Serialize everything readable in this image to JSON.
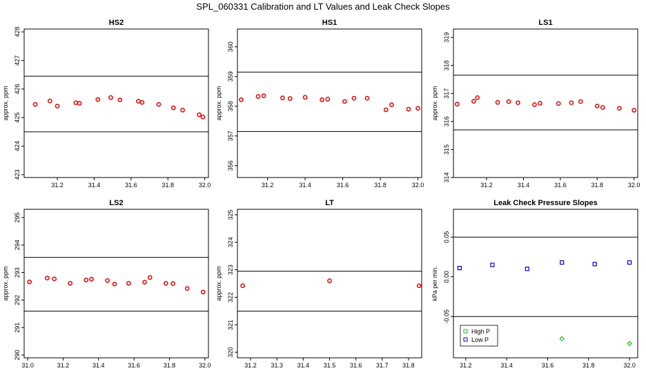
{
  "figure": {
    "title": "SPL_060331  Calibration and LT Values and Leak Check Slopes"
  },
  "chart_data": [
    {
      "type": "scatter",
      "title": "HS2",
      "ylabel": "approx. ppm",
      "xlim": [
        31.02,
        32.02
      ],
      "ylim": [
        422.9,
        428.1
      ],
      "xticks": [
        "31.2",
        "31.4",
        "31.6",
        "31.8",
        "32.0"
      ],
      "yticks": [
        "423",
        "424",
        "425",
        "426",
        "427",
        "428"
      ],
      "hlines": [
        426.45,
        424.5
      ],
      "series": [
        {
          "color": "#dd0000",
          "marker": "circle",
          "x": [
            31.08,
            31.16,
            31.2,
            31.3,
            31.32,
            31.42,
            31.49,
            31.54,
            31.64,
            31.66,
            31.75,
            31.83,
            31.88,
            31.97,
            31.99
          ],
          "y": [
            425.46,
            425.58,
            425.4,
            425.52,
            425.5,
            425.63,
            425.7,
            425.62,
            425.57,
            425.53,
            425.46,
            425.34,
            425.26,
            425.1,
            425.02
          ]
        }
      ]
    },
    {
      "type": "scatter",
      "title": "HS1",
      "ylabel": "approx. ppm",
      "xlim": [
        31.04,
        32.02
      ],
      "ylim": [
        355.6,
        360.6
      ],
      "xticks": [
        "31.2",
        "31.4",
        "31.6",
        "31.8",
        "32.0"
      ],
      "yticks": [
        "356",
        "357",
        "358",
        "359",
        "360"
      ],
      "hlines": [
        359.15,
        357.15
      ],
      "series": [
        {
          "color": "#dd0000",
          "marker": "circle",
          "x": [
            31.06,
            31.15,
            31.18,
            31.28,
            31.32,
            31.4,
            31.49,
            31.52,
            31.61,
            31.66,
            31.73,
            31.83,
            31.86,
            31.95,
            32.0
          ],
          "y": [
            358.22,
            358.33,
            358.35,
            358.28,
            358.26,
            358.3,
            358.22,
            358.24,
            358.16,
            358.27,
            358.27,
            357.88,
            358.05,
            357.9,
            357.93
          ]
        }
      ]
    },
    {
      "type": "scatter",
      "title": "LS1",
      "ylabel": "approx. ppm",
      "xlim": [
        31.02,
        32.02
      ],
      "ylim": [
        314.0,
        319.3
      ],
      "xticks": [
        "31.2",
        "31.4",
        "31.6",
        "31.8",
        "32.0"
      ],
      "yticks": [
        "314",
        "315",
        "316",
        "317",
        "318",
        "319"
      ],
      "hlines": [
        317.65,
        315.7
      ],
      "series": [
        {
          "color": "#dd0000",
          "marker": "circle",
          "x": [
            31.04,
            31.13,
            31.15,
            31.26,
            31.32,
            31.37,
            31.46,
            31.49,
            31.59,
            31.66,
            31.71,
            31.8,
            31.83,
            31.92,
            32.0
          ],
          "y": [
            316.62,
            316.72,
            316.85,
            316.68,
            316.71,
            316.67,
            316.6,
            316.65,
            316.64,
            316.67,
            316.71,
            316.55,
            316.5,
            316.47,
            316.4
          ]
        }
      ]
    },
    {
      "type": "scatter",
      "title": "LS2",
      "ylabel": "approx. ppm",
      "xlim": [
        30.98,
        32.02
      ],
      "ylim": [
        289.9,
        295.3
      ],
      "xticks": [
        "31.0",
        "31.2",
        "31.4",
        "31.6",
        "31.8",
        "32.0"
      ],
      "yticks": [
        "290",
        "291",
        "292",
        "293",
        "294",
        "295"
      ],
      "hlines": [
        293.55,
        291.6
      ],
      "series": [
        {
          "color": "#dd0000",
          "marker": "circle",
          "x": [
            31.01,
            31.11,
            31.15,
            31.24,
            31.33,
            31.36,
            31.45,
            31.49,
            31.57,
            31.66,
            31.69,
            31.78,
            31.82,
            31.9,
            31.99
          ],
          "y": [
            292.66,
            292.8,
            292.77,
            292.61,
            292.73,
            292.76,
            292.71,
            292.58,
            292.61,
            292.65,
            292.82,
            292.61,
            292.6,
            292.42,
            292.29
          ]
        }
      ]
    },
    {
      "type": "scatter",
      "title": "LT",
      "ylabel": "approx. ppm",
      "xlim": [
        31.15,
        31.85
      ],
      "ylim": [
        319.8,
        325.2
      ],
      "xticks": [
        "31.2",
        "31.3",
        "31.4",
        "31.5",
        "31.6",
        "31.7",
        "31.8"
      ],
      "yticks": [
        "320",
        "321",
        "322",
        "323",
        "324",
        "325"
      ],
      "hlines": [
        322.95,
        321.5
      ],
      "series": [
        {
          "color": "#dd0000",
          "marker": "circle",
          "x": [
            31.17,
            31.5,
            31.84
          ],
          "y": [
            322.42,
            322.6,
            322.42
          ]
        }
      ]
    },
    {
      "type": "scatter",
      "title": "Leak Check Pressure Slopes",
      "ylabel": "kPa per min.",
      "xlim": [
        31.14,
        32.04
      ],
      "ylim": [
        -0.102,
        0.085
      ],
      "xticks": [
        "31.2",
        "31.4",
        "31.6",
        "31.8",
        "32.0"
      ],
      "yticks": [
        "-0.05",
        "0.00",
        "0.05"
      ],
      "hlines": [
        0.05,
        -0.05
      ],
      "legend": {
        "position": "bottom-left",
        "entries": [
          "High P",
          "Low P"
        ]
      },
      "series": [
        {
          "name": "High P",
          "color": "#22bb22",
          "marker": "diamond",
          "x": [
            31.33,
            31.67,
            32.0
          ],
          "y": [
            -0.085,
            -0.078,
            -0.084
          ]
        },
        {
          "name": "Low P",
          "color": "#0000cc",
          "marker": "square",
          "x": [
            31.17,
            31.33,
            31.5,
            31.67,
            31.83,
            32.0
          ],
          "y": [
            0.011,
            0.015,
            0.01,
            0.018,
            0.016,
            0.018
          ]
        }
      ]
    }
  ]
}
